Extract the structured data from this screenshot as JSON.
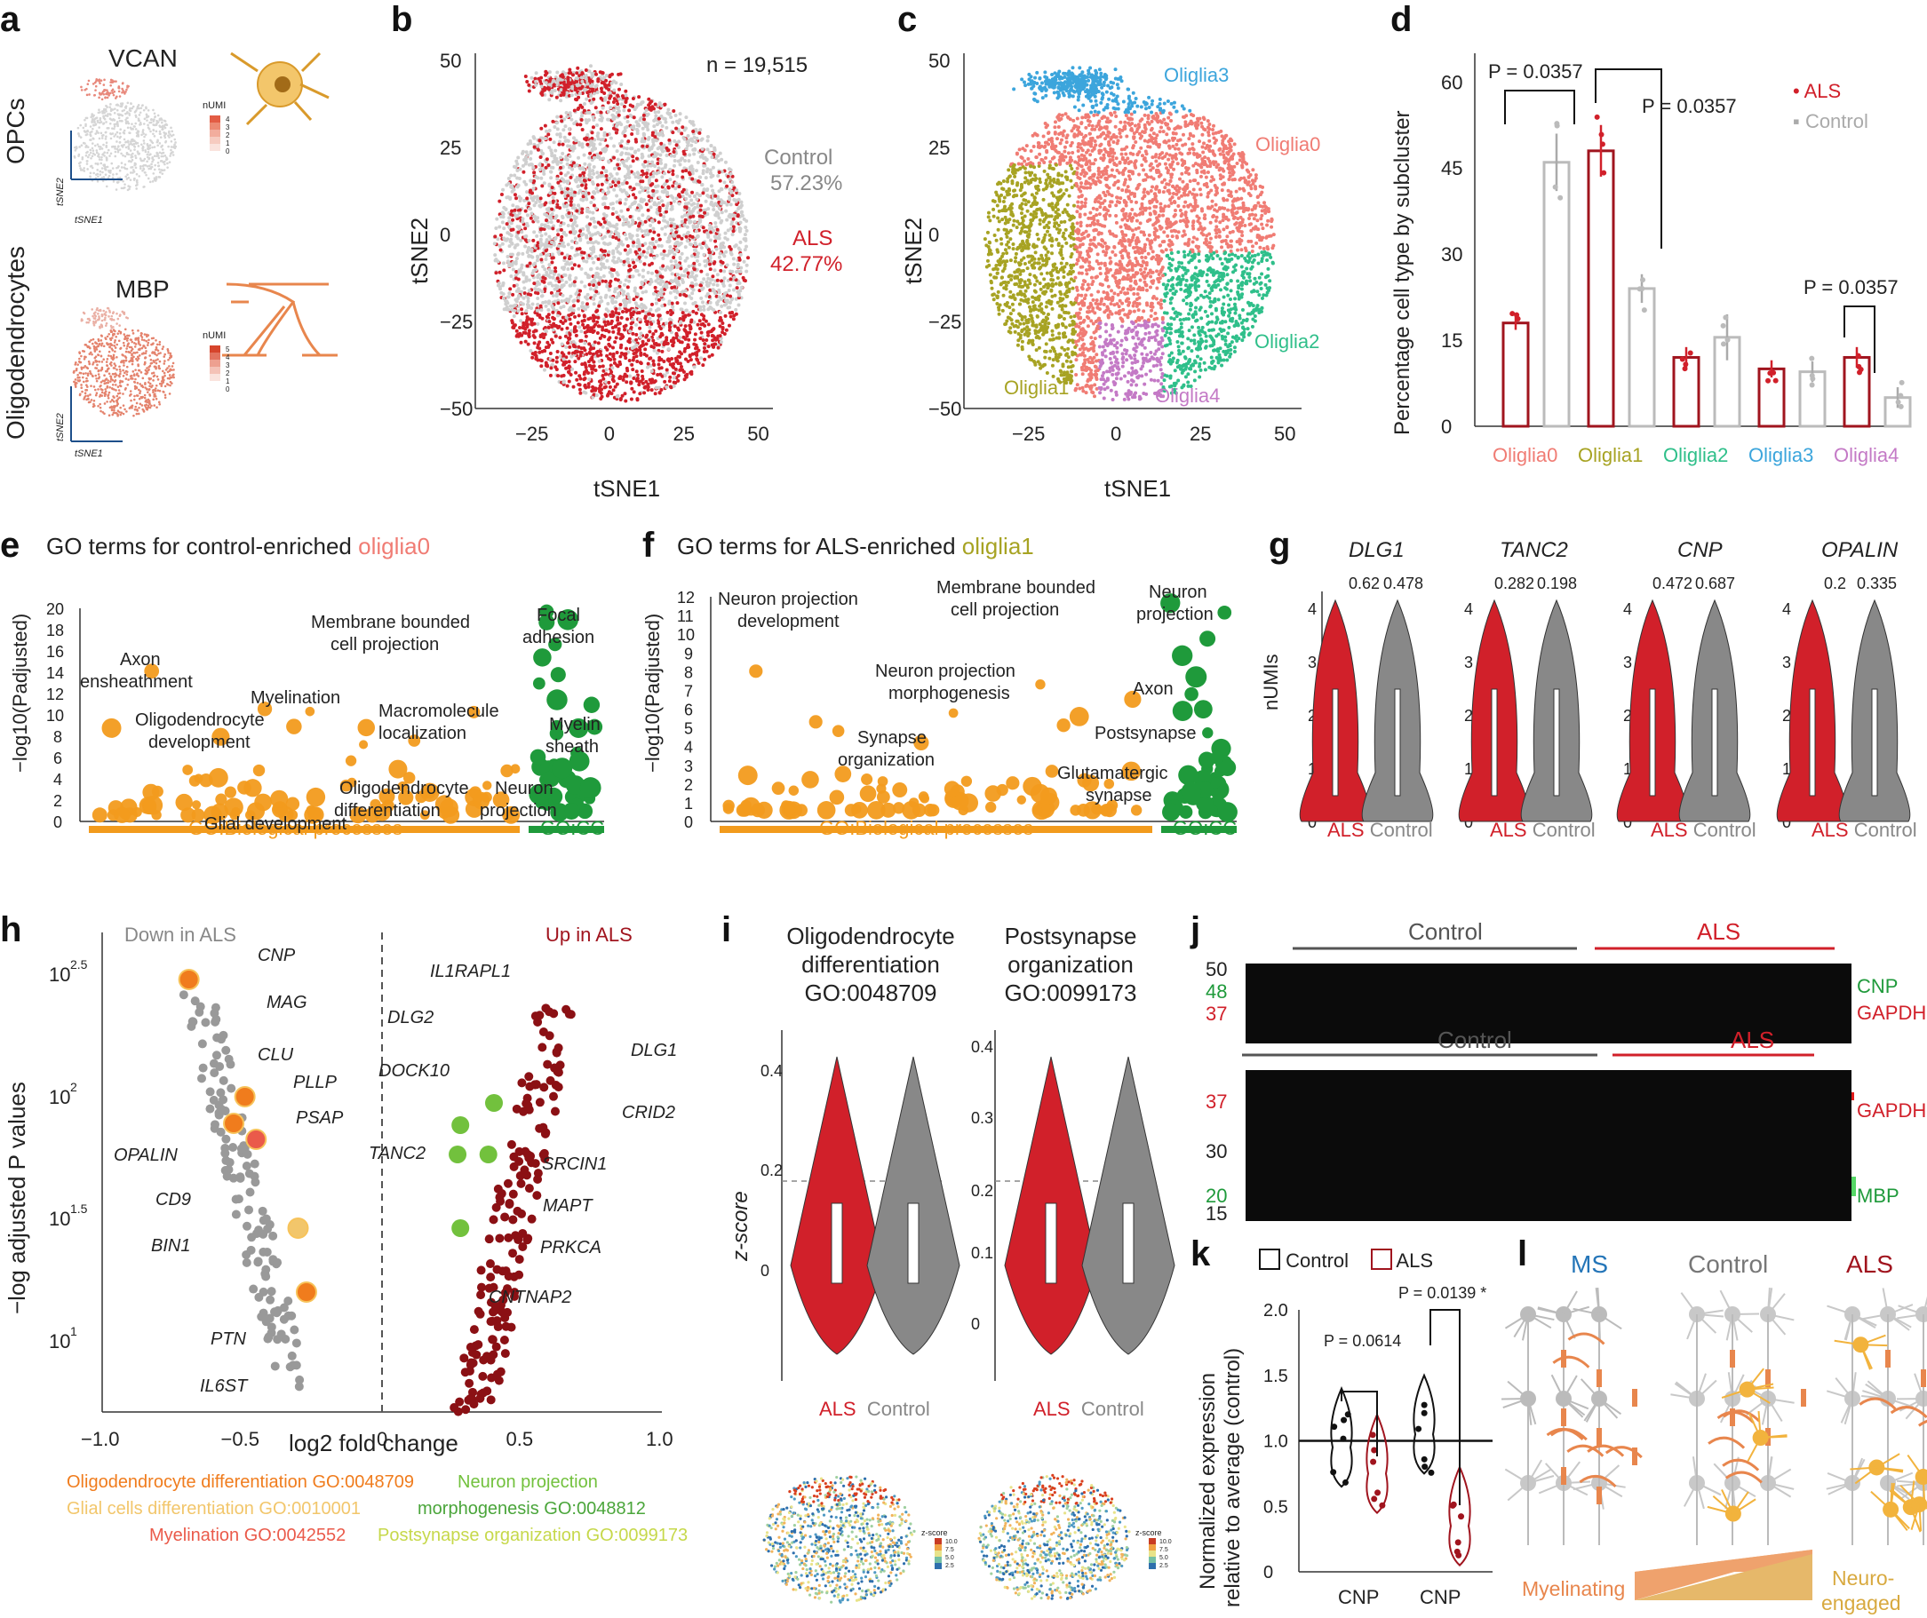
{
  "panels": {
    "a": "a",
    "b": "b",
    "c": "c",
    "d": "d",
    "e": "e",
    "f": "f",
    "g": "g",
    "h": "h",
    "i": "i",
    "j": "j",
    "k": "k",
    "l": "l"
  },
  "panel_a": {
    "row1_label": "OPCs",
    "row2_label": "Oligodendrocytes",
    "gene1": "VCAN",
    "gene2": "MBP",
    "legend_title": "nUMI",
    "ticks1": [
      "4",
      "3",
      "2",
      "1",
      "0"
    ],
    "ticks2": [
      "5",
      "4",
      "3",
      "2",
      "1",
      "0"
    ],
    "axis_y": "tSNE2",
    "axis_x": "tSNE1"
  },
  "panel_b": {
    "n_text": "n = 19,515",
    "control_label": "Control",
    "control_pct": "57.23%",
    "als_label": "ALS",
    "als_pct": "42.77%",
    "xlabel": "tSNE1",
    "ylabel": "tSNE2"
  },
  "panel_c": {
    "clusters": [
      "Oliglia0",
      "Oliglia1",
      "Oliglia2",
      "Oliglia3",
      "Oliglia4"
    ],
    "xlabel": "tSNE1",
    "ylabel": "tSNE2"
  },
  "panel_e": {
    "title_prefix": "GO terms for control-enriched ",
    "title_cell": "oliglia0",
    "ylabel": "−log10(Padjusted)",
    "bp": "GO:Biological processes",
    "cc": "GO:CC",
    "terms": [
      "Membrane bounded",
      "cell projection",
      "Focal",
      "adhesion",
      "Axon",
      "ensheathment",
      "Myelination",
      "Oligodendrocyte",
      "development",
      "Macromolecule",
      "localization",
      "Myelin",
      "sheath",
      "Oligodendrocyte",
      "differentiation",
      "Neuron",
      "projection",
      "Glial development"
    ]
  },
  "panel_f": {
    "title_prefix": "GO terms for ALS-enriched ",
    "title_cell": "oliglia1",
    "ylabel": "−log10(Padjusted)",
    "bp": "GO:Biological processes",
    "cc": "GO:CC",
    "terms": [
      "Neuron projection",
      "development",
      "Membrane bounded",
      "cell projection",
      "Neuron",
      "projection",
      "Neuron projection",
      "morphogenesis",
      "Axon",
      "Postsynapse",
      "Synapse",
      "organization",
      "Glutamatergic",
      "synapse"
    ]
  },
  "panel_g": {
    "genes": [
      "DLG1",
      "TANC2",
      "CNP",
      "OPALIN"
    ],
    "values": [
      [
        "0.62",
        "0.478"
      ],
      [
        "0.282",
        "0.198"
      ],
      [
        "0.472",
        "0.687"
      ],
      [
        "0.2",
        "0.335"
      ]
    ],
    "ylabel": "nUMIs",
    "als": "ALS",
    "control": "Control"
  },
  "panel_h": {
    "down": "Down in ALS",
    "up": "Up in ALS",
    "xlabel": "log2 fold change",
    "ylabel": "−log adjusted P values",
    "down_genes": [
      "CNP",
      "MAG",
      "CLU",
      "PLLP",
      "PSAP",
      "OPALIN",
      "CD9",
      "BIN1",
      "PTN",
      "IL6ST"
    ],
    "up_genes": [
      "IL1RAPL1",
      "DLG2",
      "DLG1",
      "DOCK10",
      "CRID2",
      "TANC2",
      "SRCIN1",
      "MAPT",
      "PRKCA",
      "CNTNAP2"
    ],
    "legend": [
      "Oligodendrocyte differentiation GO:0048709",
      "Glial cells differentiation GO:0010001",
      "Myelination GO:0042552",
      "Neuron projection",
      "morphogenesis GO:0048812",
      "Postsynapse organization GO:0099173"
    ]
  },
  "panel_i": {
    "t1a": "Oligodendrocyte",
    "t1b": "differentiation",
    "t1c": "GO:0048709",
    "t2a": "Postsynapse",
    "t2b": "organization",
    "t2c": "GO:0099173",
    "ylabel": "z-score",
    "als": "ALS",
    "control": "Control",
    "zscore": "z-score",
    "z_ticks": [
      "10.0",
      "7.5",
      "5.0",
      "2.5"
    ]
  },
  "panel_j": {
    "control": "Control",
    "als": "ALS",
    "cnp": "CNP",
    "gapdh": "GAPDH",
    "mbp": "MBP",
    "mw_top": [
      "50",
      "48",
      "37"
    ],
    "mw_bottom": [
      "37",
      "30",
      "20",
      "15"
    ]
  },
  "panel_k": {
    "legend_control": "Control",
    "legend_als": "ALS",
    "ylabel1": "Normalized expression",
    "ylabel2": "relative to average (control)",
    "p1": "P = 0.0614",
    "p2": "P = 0.0139 *",
    "xlabels": [
      "CNP",
      "CNP"
    ]
  },
  "panel_l": {
    "ms": "MS",
    "control": "Control",
    "als": "ALS",
    "left": "Myelinating",
    "right1": "Neuro-",
    "right2": "engaged"
  },
  "colors": {
    "als": "#d1202a",
    "control": "#aaaaaa",
    "orange": "#f29b1d",
    "green": "#1f9a3b",
    "oliglia0": "#f07c74",
    "oliglia1": "#a7a323",
    "oliglia2": "#2fbf8a",
    "oliglia3": "#3ca5dc",
    "oliglia4": "#c47ac6"
  },
  "chart_data": [
    {
      "type": "scatter",
      "panel": "b",
      "title": "",
      "xlabel": "tSNE1",
      "ylabel": "tSNE2",
      "xlim": [
        -45,
        55
      ],
      "ylim": [
        -50,
        52
      ],
      "series": [
        {
          "name": "Control",
          "share": 57.23
        },
        {
          "name": "ALS",
          "share": 42.77
        }
      ],
      "n": 19515
    },
    {
      "type": "scatter",
      "panel": "c",
      "title": "",
      "xlabel": "tSNE1",
      "ylabel": "tSNE2",
      "xlim": [
        -45,
        55
      ],
      "ylim": [
        -50,
        52
      ],
      "series": [
        {
          "name": "Oliglia0"
        },
        {
          "name": "Oliglia1"
        },
        {
          "name": "Oliglia2"
        },
        {
          "name": "Oliglia3"
        },
        {
          "name": "Oliglia4"
        }
      ]
    },
    {
      "type": "bar",
      "panel": "d",
      "title": "",
      "xlabel": "",
      "ylabel": "Percentage cell type by subcluster",
      "categories": [
        "Oliglia0",
        "Oliglia1",
        "Oliglia2",
        "Oliglia3",
        "Oliglia4"
      ],
      "series": [
        {
          "name": "ALS",
          "values": [
            18,
            48,
            12,
            10,
            12
          ],
          "errors": [
            1.2,
            4.5,
            1.8,
            1.5,
            1.8
          ]
        },
        {
          "name": "Control",
          "values": [
            46,
            24,
            15.5,
            9.5,
            5
          ],
          "errors": [
            5,
            2.5,
            4,
            1.8,
            1.8
          ]
        }
      ],
      "ylim": [
        0,
        65
      ],
      "yticks": [
        0,
        15,
        30,
        45,
        60
      ],
      "annotations": [
        "P = 0.0357",
        "P = 0.0357",
        "P = 0.0357"
      ]
    },
    {
      "type": "scatter",
      "panel": "e",
      "ylabel": "−log10(Padjusted)",
      "ylim": [
        0,
        20
      ],
      "yticks": [
        0,
        2,
        4,
        6,
        8,
        10,
        12,
        14,
        16,
        18,
        20
      ]
    },
    {
      "type": "scatter",
      "panel": "f",
      "ylabel": "−log10(Padjusted)",
      "ylim": [
        0,
        12
      ],
      "yticks": [
        0,
        1,
        2,
        3,
        4,
        5,
        6,
        7,
        8,
        9,
        10,
        11,
        12
      ]
    },
    {
      "type": "violin",
      "panel": "g",
      "categories": [
        "DLG1",
        "TANC2",
        "CNP",
        "OPALIN"
      ],
      "series": [
        {
          "name": "ALS",
          "values": [
            0.62,
            0.282,
            0.472,
            0.2
          ]
        },
        {
          "name": "Control",
          "values": [
            0.478,
            0.198,
            0.687,
            0.335
          ]
        }
      ],
      "ylim": [
        0,
        4
      ],
      "yticks": [
        0,
        1,
        2,
        3,
        4
      ],
      "ylabel": "nUMIs"
    },
    {
      "type": "scatter",
      "panel": "h",
      "xlabel": "log2 fold change",
      "ylabel": "−log adjusted P values",
      "xlim": [
        -1.0,
        1.0
      ],
      "xticks": [
        "−1.0",
        "−0.5",
        "0",
        "0.5",
        "1.0"
      ],
      "yticks": [
        "10^1",
        "10^1.5",
        "10^2",
        "10^2.5"
      ]
    },
    {
      "type": "violin",
      "panel": "i",
      "series": [
        {
          "name": "Oligodendrocyte differentiation",
          "yticks": [
            0,
            0.2,
            0.4
          ]
        },
        {
          "name": "Postsynapse organization",
          "yticks": [
            0,
            0.1,
            0.2,
            0.3,
            0.4
          ]
        }
      ]
    },
    {
      "type": "violin",
      "panel": "k",
      "ylabel": "Normalized expression relative to average (control)",
      "ylim": [
        0,
        2.0
      ],
      "yticks": [
        "0",
        "0.5",
        "1.0",
        "1.5",
        "2.0"
      ],
      "categories": [
        "CNP",
        "CNP"
      ],
      "annotations": [
        "P = 0.0614",
        "P = 0.0139 *"
      ]
    }
  ]
}
